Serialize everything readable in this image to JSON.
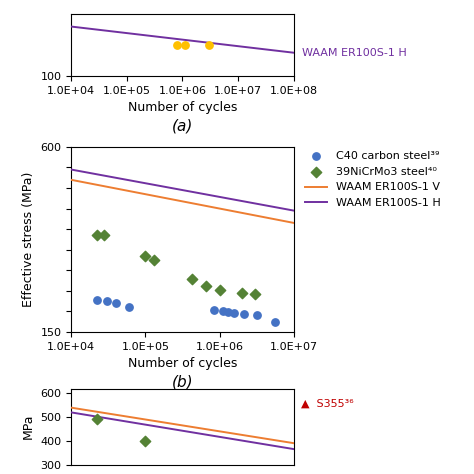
{
  "chart_data": [
    {
      "type": "line",
      "log": "x",
      "xlabel": "Number of cycles",
      "xlim": [
        10000,
        100000000
      ],
      "ylim": [
        100,
        140
      ],
      "xticks": [
        {
          "value": 10000,
          "label": "1.0E+04"
        },
        {
          "value": 100000,
          "label": "1.0E+05"
        },
        {
          "value": 1000000,
          "label": "1.0E+06"
        },
        {
          "value": 10000000,
          "label": "1.0E+07"
        },
        {
          "value": 100000000,
          "label": "1.0E+08"
        }
      ],
      "yticks": [
        100
      ],
      "annotations": [
        {
          "text": "(a)"
        }
      ],
      "series": [
        {
          "type": "scatter",
          "color": "#ffc000",
          "marker": "circle",
          "x": [
            800000,
            1100000,
            3000000
          ],
          "values": [
            120,
            120,
            120
          ]
        },
        {
          "type": "line",
          "name": "WAAM ER100S-1 H",
          "color": "#7030a0",
          "line_style": "solid",
          "x": [
            10000,
            100000000
          ],
          "values": [
            132,
            115
          ]
        }
      ]
    },
    {
      "type": "line",
      "log": "x",
      "xlabel": "Number of cycles",
      "ylabel": "Effective stress (MPa)",
      "xlim": [
        10000,
        10000000
      ],
      "ylim": [
        150,
        600
      ],
      "xticks": [
        {
          "value": 10000,
          "label": "1.0E+04"
        },
        {
          "value": 100000,
          "label": "1.0E+05"
        },
        {
          "value": 1000000,
          "label": "1.0E+06"
        },
        {
          "value": 10000000,
          "label": "1.0E+07"
        }
      ],
      "yticks": [
        150,
        {
          "value": 200,
          "label": ""
        },
        {
          "value": 250,
          "label": ""
        },
        {
          "value": 300,
          "label": ""
        },
        {
          "value": 350,
          "label": ""
        },
        {
          "value": 400,
          "label": ""
        },
        {
          "value": 450,
          "label": ""
        },
        {
          "value": 500,
          "label": ""
        },
        {
          "value": 550,
          "label": ""
        },
        600
      ],
      "legend": "upper left",
      "annotations": [
        {
          "text": "(b)"
        }
      ],
      "series": [
        {
          "type": "scatter",
          "name": "C40 carbon steel³⁹",
          "color": "#4472c4",
          "marker": "circle",
          "x": [
            22000,
            30000,
            40000,
            60000,
            850000,
            1100000,
            1300000,
            1550000,
            2100000,
            3200000,
            5500000
          ],
          "values": [
            228,
            225,
            220,
            210,
            203,
            200,
            198,
            196,
            194,
            190,
            175
          ]
        },
        {
          "type": "scatter",
          "name": "39NiCrMo3 steel⁴⁰",
          "color": "#548235",
          "marker": "diamond",
          "x": [
            22000,
            28000,
            100000,
            130000,
            420000,
            650000,
            1000000,
            2000000,
            3000000
          ],
          "values": [
            385,
            385,
            335,
            325,
            278,
            262,
            252,
            245,
            242
          ]
        },
        {
          "type": "line",
          "name": "WAAM ER100S-1 V",
          "color": "#ed7d31",
          "line_style": "solid",
          "x": [
            10000,
            10000000
          ],
          "values": [
            520,
            415
          ]
        },
        {
          "type": "line",
          "name": "WAAM ER100S-1 H",
          "color": "#7030a0",
          "line_style": "solid",
          "x": [
            10000,
            10000000
          ],
          "values": [
            545,
            445
          ]
        }
      ]
    },
    {
      "type": "line",
      "log": "x",
      "ylabel": "MPa",
      "tick_labels": "y",
      "xlim": [
        10000,
        10000000
      ],
      "ylim": [
        300,
        620
      ],
      "yticks": [
        300,
        400,
        500,
        600
      ],
      "annotations": [
        {
          "text": "▲  S355³⁶",
          "color": "#c00000"
        }
      ],
      "series": [
        {
          "type": "line",
          "color": "#ed7d31",
          "line_style": "solid",
          "x": [
            10000,
            10000000
          ],
          "values": [
            540,
            390
          ]
        },
        {
          "type": "line",
          "color": "#7030a0",
          "line_style": "solid",
          "x": [
            10000,
            10000000
          ],
          "values": [
            520,
            365
          ]
        },
        {
          "type": "scatter",
          "color": "#548235",
          "marker": "diamond",
          "x": [
            22000,
            100000
          ],
          "values": [
            490,
            400
          ]
        }
      ]
    }
  ]
}
